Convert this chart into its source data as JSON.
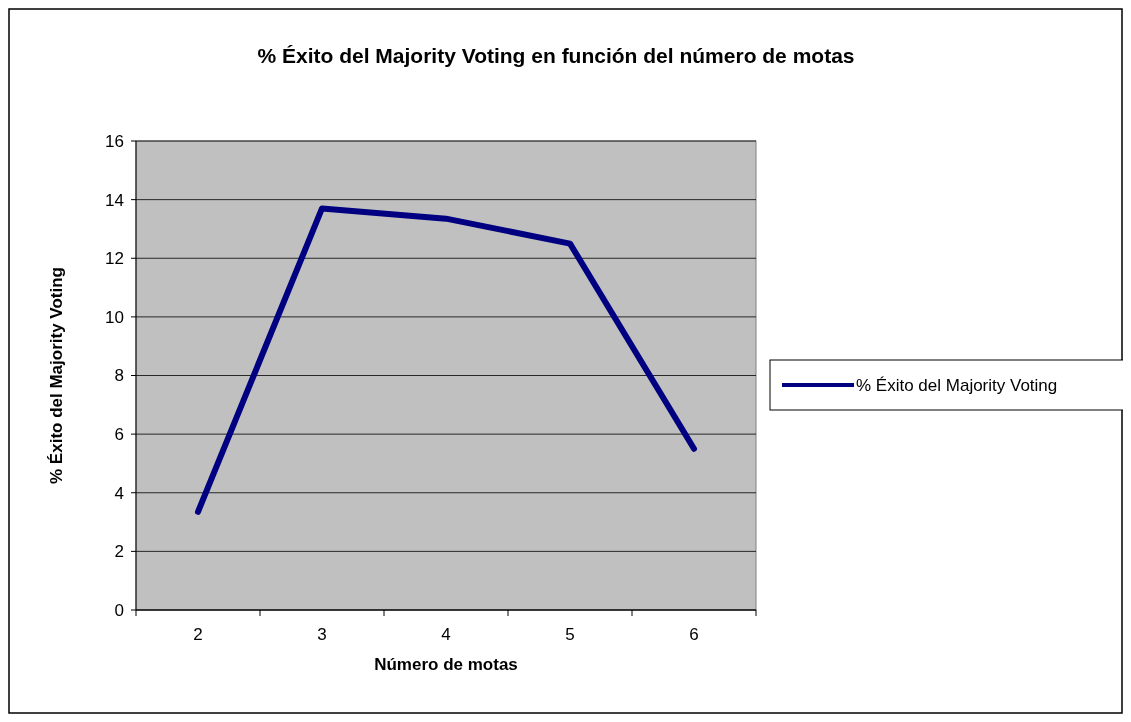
{
  "chart_data": {
    "type": "line",
    "title": "% Éxito del  Majority Voting en función del número de motas",
    "xlabel": "Número de motas",
    "ylabel": "% Éxito del Majority Voting",
    "categories": [
      "2",
      "3",
      "4",
      "5",
      "6"
    ],
    "series": [
      {
        "name": "% Éxito del  Majority Voting",
        "color": "#000080",
        "values": [
          3.35,
          13.7,
          13.35,
          12.5,
          5.5
        ]
      }
    ],
    "ylim": [
      0,
      16
    ],
    "yticks": [
      0,
      2,
      4,
      6,
      8,
      10,
      12,
      14,
      16
    ],
    "grid": "y",
    "legend": "right",
    "marker": "none",
    "line_style": "solid"
  }
}
